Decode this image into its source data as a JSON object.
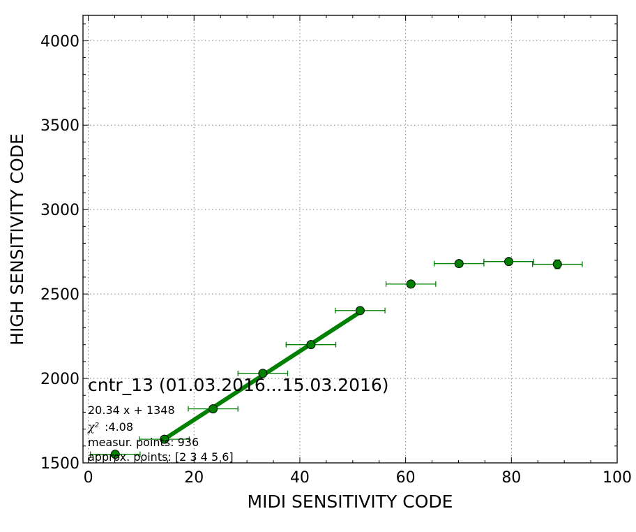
{
  "chart_data": {
    "type": "scatter",
    "title": "",
    "xlabel": "MIDI SENSITIVITY CODE",
    "ylabel": "HIGH SENSITIVITY CODE",
    "xlim": [
      -1,
      100
    ],
    "ylim": [
      1500,
      4150
    ],
    "xticks": [
      0,
      20,
      40,
      60,
      80,
      100
    ],
    "yticks": [
      1500,
      2000,
      2500,
      3000,
      3500,
      4000
    ],
    "grid": true,
    "colors": {
      "series": "#008000",
      "marker_edge": "#000000"
    },
    "series": [
      {
        "marker": "circle",
        "points": [
          {
            "x": 5.1,
            "y": 1551,
            "xerr": 4.7,
            "yerr": 5
          },
          {
            "x": 14.4,
            "y": 1640,
            "xerr": 4.7,
            "yerr": 6
          },
          {
            "x": 23.6,
            "y": 1820,
            "xerr": 4.7,
            "yerr": 6
          },
          {
            "x": 33.0,
            "y": 2030,
            "xerr": 4.7,
            "yerr": 8
          },
          {
            "x": 42.1,
            "y": 2200,
            "xerr": 4.7,
            "yerr": 8
          },
          {
            "x": 51.4,
            "y": 2402,
            "xerr": 4.7,
            "yerr": 8
          },
          {
            "x": 61.0,
            "y": 2559,
            "xerr": 4.7,
            "yerr": 10
          },
          {
            "x": 70.1,
            "y": 2680,
            "xerr": 4.7,
            "yerr": 18
          },
          {
            "x": 79.5,
            "y": 2692,
            "xerr": 4.7,
            "yerr": 14
          },
          {
            "x": 88.7,
            "y": 2676,
            "xerr": 4.7,
            "yerr": 26
          }
        ]
      }
    ],
    "fit_line": {
      "x": [
        14.4,
        51.4
      ],
      "y": [
        1641,
        2393
      ]
    },
    "annotations": {
      "label": "cntr_13 (01.03.2016...15.03.2016)",
      "equation": "20.34 x + 1348",
      "chi_symbol": "χ²",
      "chi_value": ":4.08",
      "measur_points": "measur. points: 936",
      "approx_points": "approx. points: [2 3 4 5 6]"
    }
  }
}
